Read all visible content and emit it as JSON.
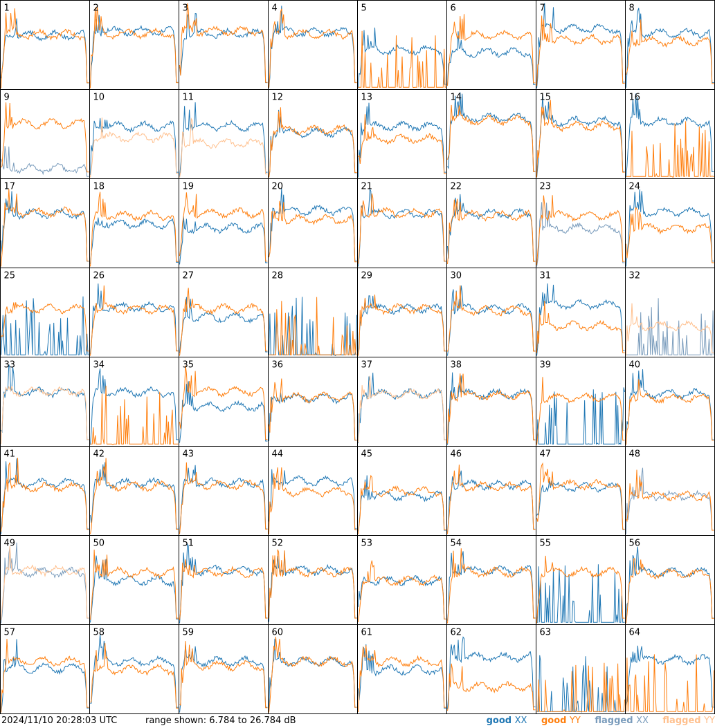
{
  "colors": {
    "good_xx": "#1f77b4",
    "good_yy": "#ff7f0e",
    "flagged_xx": "#7a9cbc",
    "flagged_yy": "#ffc08e"
  },
  "footer": {
    "timestamp": "2024/11/10 20:28:03 UTC",
    "range": "range shown: 6.784 to 26.784 dB"
  },
  "legend": {
    "good_label": "good",
    "flagged_label": "flagged",
    "xx": "XX",
    "yy": "YY"
  },
  "chart_data": {
    "type": "line",
    "layout": "8x8 small multiples",
    "y_range_db": [
      6.784,
      26.784
    ],
    "panels": [
      {
        "id": 1,
        "xx": "good",
        "yy": "good",
        "xx_level": 0.62,
        "yy_level": 0.63
      },
      {
        "id": 2,
        "xx": "good",
        "yy": "good",
        "xx_level": 0.67,
        "yy_level": 0.64
      },
      {
        "id": 3,
        "xx": "good",
        "yy": "good",
        "xx_level": 0.64,
        "yy_level": 0.67
      },
      {
        "id": 4,
        "xx": "good",
        "yy": "good",
        "xx_level": 0.66,
        "yy_level": 0.64
      },
      {
        "id": 5,
        "xx": "good",
        "yy": "good",
        "xx_level": 0.45,
        "yy_level": 0.05
      },
      {
        "id": 6,
        "xx": "good",
        "yy": "good",
        "xx_level": 0.42,
        "yy_level": 0.62
      },
      {
        "id": 7,
        "xx": "good",
        "yy": "good",
        "xx_level": 0.7,
        "yy_level": 0.57
      },
      {
        "id": 8,
        "xx": "good",
        "yy": "good",
        "xx_level": 0.65,
        "yy_level": 0.55
      },
      {
        "id": 9,
        "xx": "flagged",
        "yy": "good",
        "xx_level": 0.1,
        "yy_level": 0.63
      },
      {
        "id": 10,
        "xx": "good",
        "yy": "flagged",
        "xx_level": 0.6,
        "yy_level": 0.47
      },
      {
        "id": 11,
        "xx": "good",
        "yy": "flagged",
        "xx_level": 0.6,
        "yy_level": 0.4
      },
      {
        "id": 12,
        "xx": "good",
        "yy": "good",
        "xx_level": 0.53,
        "yy_level": 0.56
      },
      {
        "id": 13,
        "xx": "good",
        "yy": "good",
        "xx_level": 0.6,
        "yy_level": 0.45
      },
      {
        "id": 14,
        "xx": "good",
        "yy": "good",
        "xx_level": 0.7,
        "yy_level": 0.67
      },
      {
        "id": 15,
        "xx": "good",
        "yy": "good",
        "xx_level": 0.66,
        "yy_level": 0.6
      },
      {
        "id": 16,
        "xx": "good",
        "yy": "good",
        "xx_level": 0.65,
        "yy_level": 0.05
      },
      {
        "id": 17,
        "xx": "good",
        "yy": "good",
        "xx_level": 0.62,
        "yy_level": 0.64
      },
      {
        "id": 18,
        "xx": "good",
        "yy": "good",
        "xx_level": 0.5,
        "yy_level": 0.6
      },
      {
        "id": 19,
        "xx": "good",
        "yy": "good",
        "xx_level": 0.45,
        "yy_level": 0.63
      },
      {
        "id": 20,
        "xx": "good",
        "yy": "good",
        "xx_level": 0.66,
        "yy_level": 0.55
      },
      {
        "id": 21,
        "xx": "good",
        "yy": "good",
        "xx_level": 0.62,
        "yy_level": 0.63
      },
      {
        "id": 22,
        "xx": "good",
        "yy": "good",
        "xx_level": 0.62,
        "yy_level": 0.6
      },
      {
        "id": 23,
        "xx": "flagged",
        "yy": "good",
        "xx_level": 0.45,
        "yy_level": 0.6
      },
      {
        "id": 24,
        "xx": "good",
        "yy": "good",
        "xx_level": 0.64,
        "yy_level": 0.45
      },
      {
        "id": 25,
        "xx": "good",
        "yy": "good",
        "xx_level": 0.0,
        "yy_level": 0.55
      },
      {
        "id": 26,
        "xx": "good",
        "yy": "good",
        "xx_level": 0.57,
        "yy_level": 0.55
      },
      {
        "id": 27,
        "xx": "good",
        "yy": "good",
        "xx_level": 0.45,
        "yy_level": 0.55
      },
      {
        "id": 28,
        "xx": "good",
        "yy": "good",
        "xx_level": 0.0,
        "yy_level": 0.05
      },
      {
        "id": 29,
        "xx": "good",
        "yy": "good",
        "xx_level": 0.55,
        "yy_level": 0.55
      },
      {
        "id": 30,
        "xx": "good",
        "yy": "good",
        "xx_level": 0.55,
        "yy_level": 0.53
      },
      {
        "id": 31,
        "xx": "good",
        "yy": "good",
        "xx_level": 0.6,
        "yy_level": 0.35
      },
      {
        "id": 32,
        "xx": "flagged",
        "yy": "flagged",
        "xx_level": 0.0,
        "yy_level": 0.35
      },
      {
        "id": 33,
        "xx": "good",
        "yy": "flagged",
        "xx_level": 0.62,
        "yy_level": 0.63
      },
      {
        "id": 34,
        "xx": "good",
        "yy": "good",
        "xx_level": 0.62,
        "yy_level": 0.05
      },
      {
        "id": 35,
        "xx": "good",
        "yy": "good",
        "xx_level": 0.45,
        "yy_level": 0.63
      },
      {
        "id": 36,
        "xx": "good",
        "yy": "good",
        "xx_level": 0.55,
        "yy_level": 0.56
      },
      {
        "id": 37,
        "xx": "good",
        "yy": "flagged",
        "xx_level": 0.6,
        "yy_level": 0.6
      },
      {
        "id": 38,
        "xx": "good",
        "yy": "good",
        "xx_level": 0.6,
        "yy_level": 0.58
      },
      {
        "id": 39,
        "xx": "good",
        "yy": "good",
        "xx_level": 0.05,
        "yy_level": 0.55
      },
      {
        "id": 40,
        "xx": "good",
        "yy": "good",
        "xx_level": 0.6,
        "yy_level": 0.55
      },
      {
        "id": 41,
        "xx": "good",
        "yy": "good",
        "xx_level": 0.6,
        "yy_level": 0.55
      },
      {
        "id": 42,
        "xx": "good",
        "yy": "good",
        "xx_level": 0.6,
        "yy_level": 0.56
      },
      {
        "id": 43,
        "xx": "good",
        "yy": "good",
        "xx_level": 0.6,
        "yy_level": 0.58
      },
      {
        "id": 44,
        "xx": "good",
        "yy": "good",
        "xx_level": 0.62,
        "yy_level": 0.5
      },
      {
        "id": 45,
        "xx": "good",
        "yy": "good",
        "xx_level": 0.45,
        "yy_level": 0.5
      },
      {
        "id": 46,
        "xx": "good",
        "yy": "good",
        "xx_level": 0.58,
        "yy_level": 0.56
      },
      {
        "id": 47,
        "xx": "good",
        "yy": "good",
        "xx_level": 0.55,
        "yy_level": 0.58
      },
      {
        "id": 48,
        "xx": "flagged",
        "yy": "good",
        "xx_level": 0.45,
        "yy_level": 0.45
      },
      {
        "id": 49,
        "xx": "flagged",
        "yy": "flagged",
        "xx_level": 0.6,
        "yy_level": 0.62
      },
      {
        "id": 50,
        "xx": "good",
        "yy": "good",
        "xx_level": 0.5,
        "yy_level": 0.6
      },
      {
        "id": 51,
        "xx": "good",
        "yy": "good",
        "xx_level": 0.62,
        "yy_level": 0.6
      },
      {
        "id": 52,
        "xx": "good",
        "yy": "good",
        "xx_level": 0.62,
        "yy_level": 0.6
      },
      {
        "id": 53,
        "xx": "good",
        "yy": "good",
        "xx_level": 0.5,
        "yy_level": 0.5
      },
      {
        "id": 54,
        "xx": "good",
        "yy": "good",
        "xx_level": 0.62,
        "yy_level": 0.6
      },
      {
        "id": 55,
        "xx": "good",
        "yy": "good",
        "xx_level": 0.05,
        "yy_level": 0.6
      },
      {
        "id": 56,
        "xx": "good",
        "yy": "good",
        "xx_level": 0.6,
        "yy_level": 0.58
      },
      {
        "id": 57,
        "xx": "good",
        "yy": "good",
        "xx_level": 0.52,
        "yy_level": 0.6
      },
      {
        "id": 58,
        "xx": "good",
        "yy": "good",
        "xx_level": 0.6,
        "yy_level": 0.5
      },
      {
        "id": 59,
        "xx": "good",
        "yy": "good",
        "xx_level": 0.6,
        "yy_level": 0.55
      },
      {
        "id": 60,
        "xx": "good",
        "yy": "good",
        "xx_level": 0.6,
        "yy_level": 0.6
      },
      {
        "id": 61,
        "xx": "good",
        "yy": "good",
        "xx_level": 0.5,
        "yy_level": 0.6
      },
      {
        "id": 62,
        "xx": "good",
        "yy": "good",
        "xx_level": 0.65,
        "yy_level": 0.3
      },
      {
        "id": 63,
        "xx": "good",
        "yy": "good",
        "xx_level": 0.0,
        "yy_level": 0.05
      },
      {
        "id": 64,
        "xx": "good",
        "yy": "good",
        "xx_level": 0.62,
        "yy_level": 0.0
      }
    ]
  }
}
